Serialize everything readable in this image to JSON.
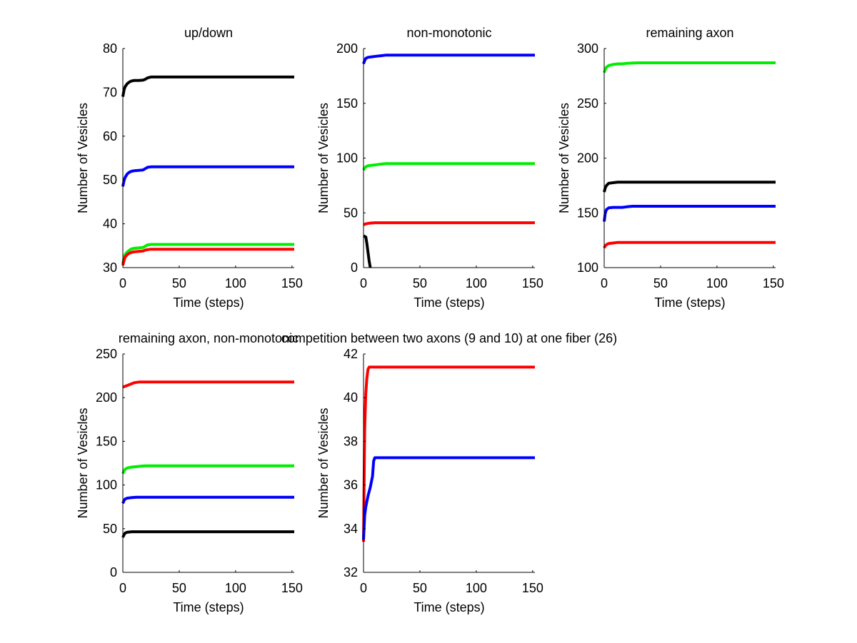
{
  "chart_data": [
    {
      "type": "line",
      "title": "up/down",
      "xlabel": "Time (steps)",
      "ylabel": "Number of Vesicles",
      "xlim": [
        0,
        152
      ],
      "ylim": [
        30,
        80
      ],
      "xticks": [
        0,
        50,
        100,
        150
      ],
      "yticks": [
        30,
        40,
        50,
        60,
        70,
        80
      ],
      "grid": false,
      "series": [
        {
          "color": "#000000",
          "x": [
            0,
            1,
            2,
            4,
            6,
            8,
            10,
            14,
            18,
            20,
            22,
            25,
            30,
            152
          ],
          "y": [
            69,
            70.5,
            71.3,
            72,
            72.4,
            72.6,
            72.7,
            72.7,
            72.8,
            73,
            73.3,
            73.5,
            73.5,
            73.5
          ]
        },
        {
          "color": "#0000ff",
          "x": [
            0,
            1,
            2,
            4,
            6,
            8,
            10,
            14,
            18,
            20,
            22,
            25,
            30,
            152
          ],
          "y": [
            48.5,
            49.8,
            50.6,
            51.4,
            51.8,
            52,
            52.1,
            52.2,
            52.3,
            52.6,
            52.9,
            53,
            53,
            53
          ]
        },
        {
          "color": "#00ee00",
          "x": [
            0,
            1,
            2,
            4,
            6,
            8,
            10,
            14,
            18,
            20,
            22,
            25,
            30,
            152
          ],
          "y": [
            31,
            32.2,
            33,
            33.6,
            34,
            34.3,
            34.4,
            34.5,
            34.6,
            34.9,
            35.2,
            35.3,
            35.3,
            35.3
          ]
        },
        {
          "color": "#ff0000",
          "x": [
            0,
            1,
            2,
            4,
            6,
            8,
            10,
            14,
            18,
            20,
            22,
            25,
            30,
            152
          ],
          "y": [
            30.5,
            31.6,
            32.4,
            33,
            33.3,
            33.5,
            33.6,
            33.7,
            33.8,
            34,
            34.1,
            34.2,
            34.2,
            34.2
          ]
        }
      ]
    },
    {
      "type": "line",
      "title": "non-monotonic",
      "xlabel": "Time (steps)",
      "ylabel": "Number of Vesicles",
      "xlim": [
        0,
        152
      ],
      "ylim": [
        0,
        200
      ],
      "xticks": [
        0,
        50,
        100,
        150
      ],
      "yticks": [
        0,
        50,
        100,
        150,
        200
      ],
      "grid": false,
      "series": [
        {
          "color": "#0000ff",
          "x": [
            0,
            1,
            2,
            4,
            8,
            12,
            16,
            20,
            30,
            152
          ],
          "y": [
            186,
            189,
            191,
            192,
            192.5,
            193,
            193.5,
            194,
            194,
            194
          ]
        },
        {
          "color": "#00ee00",
          "x": [
            0,
            1,
            2,
            4,
            8,
            12,
            16,
            20,
            30,
            152
          ],
          "y": [
            89,
            91,
            92,
            93,
            93.5,
            94,
            94.5,
            95,
            95,
            95
          ]
        },
        {
          "color": "#ff0000",
          "x": [
            0,
            2,
            5,
            10,
            152
          ],
          "y": [
            39,
            40,
            40.5,
            41,
            41
          ]
        },
        {
          "color": "#000000",
          "x": [
            0,
            2,
            3,
            4,
            5,
            6
          ],
          "y": [
            29,
            28,
            22,
            14,
            6,
            0
          ]
        }
      ]
    },
    {
      "type": "line",
      "title": "remaining axon",
      "xlabel": "Time (steps)",
      "ylabel": "Number of Vesicles",
      "xlim": [
        0,
        152
      ],
      "ylim": [
        100,
        300
      ],
      "xticks": [
        0,
        50,
        100,
        150
      ],
      "yticks": [
        100,
        150,
        200,
        250,
        300
      ],
      "grid": false,
      "series": [
        {
          "color": "#00ee00",
          "x": [
            0,
            1,
            2,
            4,
            8,
            12,
            16,
            20,
            30,
            152
          ],
          "y": [
            278,
            281,
            283,
            284.5,
            285.5,
            286,
            286,
            286.5,
            287,
            287
          ]
        },
        {
          "color": "#000000",
          "x": [
            0,
            1,
            2,
            4,
            8,
            12,
            152
          ],
          "y": [
            169,
            173,
            175,
            177,
            177.5,
            178,
            178
          ]
        },
        {
          "color": "#0000ff",
          "x": [
            0,
            1,
            2,
            4,
            8,
            12,
            16,
            20,
            25,
            30,
            152
          ],
          "y": [
            142,
            150,
            153,
            154.5,
            155,
            155,
            155,
            155.5,
            156,
            156,
            156
          ]
        },
        {
          "color": "#ff0000",
          "x": [
            0,
            1,
            2,
            4,
            8,
            12,
            16,
            20,
            30,
            152
          ],
          "y": [
            118,
            120,
            121,
            122,
            122.5,
            123,
            123,
            123,
            123,
            123
          ]
        }
      ]
    },
    {
      "type": "line",
      "title": "remaining axon, non-monotonic",
      "xlabel": "Time (steps)",
      "ylabel": "Number of Vesicles",
      "xlim": [
        0,
        152
      ],
      "ylim": [
        0,
        250
      ],
      "xticks": [
        0,
        50,
        100,
        150
      ],
      "yticks": [
        0,
        50,
        100,
        150,
        200,
        250
      ],
      "grid": false,
      "series": [
        {
          "color": "#ff0000",
          "x": [
            0,
            2,
            4,
            6,
            8,
            10,
            12,
            15,
            152
          ],
          "y": [
            212,
            213,
            214,
            215,
            216,
            217,
            217.5,
            218,
            218
          ]
        },
        {
          "color": "#00ee00",
          "x": [
            0,
            1,
            2,
            4,
            8,
            12,
            16,
            20,
            152
          ],
          "y": [
            113,
            116,
            118,
            119.5,
            120.5,
            121,
            121.5,
            122,
            122
          ]
        },
        {
          "color": "#0000ff",
          "x": [
            0,
            1,
            2,
            4,
            8,
            12,
            152
          ],
          "y": [
            79,
            82,
            84,
            85,
            85.5,
            86,
            86
          ]
        },
        {
          "color": "#000000",
          "x": [
            0,
            1,
            2,
            4,
            8,
            152
          ],
          "y": [
            40,
            43,
            45,
            46,
            46.5,
            46.5
          ]
        }
      ]
    },
    {
      "type": "line",
      "title": "competition between two axons (9 and 10) at one fiber (26)",
      "xlabel": "Time (steps)",
      "ylabel": "Number of Vesicles",
      "xlim": [
        0,
        152
      ],
      "ylim": [
        32,
        42
      ],
      "xticks": [
        0,
        50,
        100,
        150
      ],
      "yticks": [
        32,
        34,
        36,
        38,
        40,
        42
      ],
      "grid": false,
      "series": [
        {
          "color": "#ff0000",
          "x": [
            0,
            0.5,
            1,
            2,
            3,
            4,
            5,
            152
          ],
          "y": [
            33.4,
            36,
            38.5,
            40.2,
            40.9,
            41.3,
            41.4,
            41.4
          ]
        },
        {
          "color": "#0000ff",
          "x": [
            0,
            1,
            2,
            4,
            6,
            8,
            9,
            10,
            152
          ],
          "y": [
            33.5,
            34.6,
            35,
            35.5,
            35.9,
            36.4,
            37.1,
            37.25,
            37.25
          ]
        }
      ]
    }
  ]
}
